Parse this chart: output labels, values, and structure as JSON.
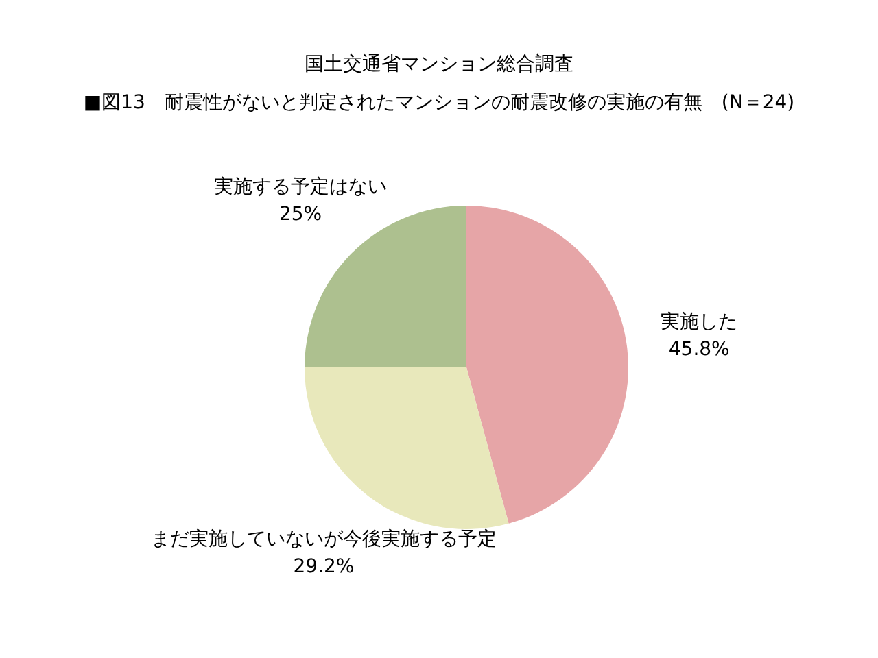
{
  "chart_data": {
    "type": "pie",
    "title": "国土交通省マンション総合調査",
    "subtitle": "■図13　耐震性がないと判定されたマンションの耐震改修の実施の有無　(N＝24)",
    "categories": [
      "実施した",
      "まだ実施していないが今後実施する予定",
      "実施する予定はない"
    ],
    "values": [
      45.8,
      29.2,
      25
    ],
    "colors": [
      "#e6a5a7",
      "#e8e8bb",
      "#adc08f"
    ],
    "value_labels": [
      "45.8%",
      "29.2%",
      "25%"
    ],
    "legend": false
  }
}
